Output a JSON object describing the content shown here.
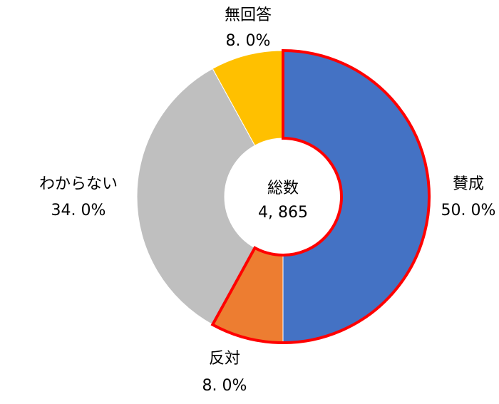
{
  "chart_data": {
    "type": "pie",
    "variant": "donut",
    "center": {
      "title": "総数",
      "total": "4, 865"
    },
    "slices": [
      {
        "label": "賛成",
        "value": 50.0,
        "display": "50. 0%",
        "color": "#4472C4"
      },
      {
        "label": "反対",
        "value": 8.0,
        "display": "8. 0%",
        "color": "#ED7D31"
      },
      {
        "label": "わからない",
        "value": 34.0,
        "display": "34. 0%",
        "color": "#BFBFBF"
      },
      {
        "label": "無回答",
        "value": 8.0,
        "display": "8. 0%",
        "color": "#FFC000"
      }
    ],
    "highlight": {
      "slices": [
        "賛成",
        "反対"
      ],
      "outline_color": "#FF0000"
    },
    "start_angle": "12 o'clock",
    "direction": "clockwise",
    "legend": "none"
  }
}
